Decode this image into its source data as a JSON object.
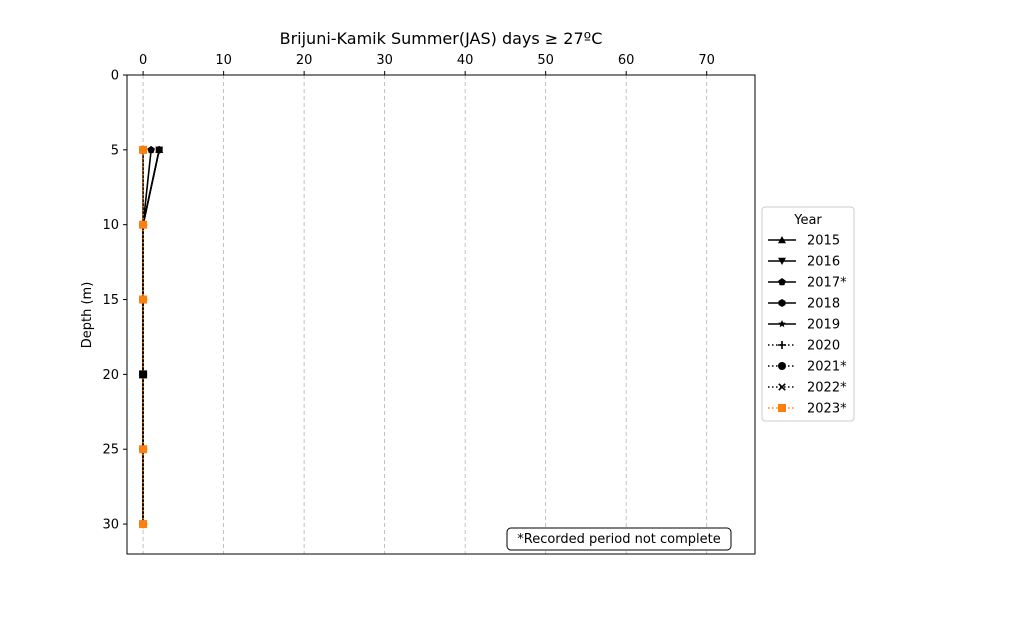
{
  "chart_data": {
    "type": "line",
    "title": "Brijuni-Kamik Summer(JAS) days ≥ 27ºC",
    "xlabel": "",
    "ylabel": "Depth (m)",
    "xlim": [
      -2,
      76
    ],
    "ylim": [
      32,
      0
    ],
    "x_ticks": [
      0,
      10,
      20,
      30,
      40,
      50,
      60,
      70
    ],
    "y_ticks": [
      0,
      5,
      10,
      15,
      20,
      25,
      30
    ],
    "x_axis_position": "top",
    "y_inverted": true,
    "grid": "vertical dashed",
    "legend": {
      "title": "Year",
      "placement": "center-right outside"
    },
    "annotation": "*Recorded period not complete",
    "series": [
      {
        "name": "2015",
        "marker": "triangle-up",
        "linestyle": "solid",
        "color": "#000000",
        "points": [
          {
            "x": 2,
            "y": 5
          },
          {
            "x": 0,
            "y": 10
          },
          {
            "x": 0,
            "y": 15
          },
          {
            "x": 0,
            "y": 20
          },
          {
            "x": 0,
            "y": 25
          },
          {
            "x": 0,
            "y": 30
          }
        ]
      },
      {
        "name": "2016",
        "marker": "triangle-down",
        "linestyle": "solid",
        "color": "#000000",
        "points": [
          {
            "x": 2,
            "y": 5
          },
          {
            "x": 0,
            "y": 10
          },
          {
            "x": 0,
            "y": 15
          },
          {
            "x": 0,
            "y": 20
          },
          {
            "x": 0,
            "y": 25
          },
          {
            "x": 0,
            "y": 30
          }
        ]
      },
      {
        "name": "2017*",
        "marker": "pentagon",
        "linestyle": "solid",
        "color": "#000000",
        "points": [
          {
            "x": 1,
            "y": 5
          },
          {
            "x": 0,
            "y": 10
          },
          {
            "x": 0,
            "y": 15
          },
          {
            "x": 0,
            "y": 20
          },
          {
            "x": 0,
            "y": 25
          },
          {
            "x": 0,
            "y": 30
          }
        ]
      },
      {
        "name": "2018",
        "marker": "hexagon",
        "linestyle": "solid",
        "color": "#000000",
        "points": [
          {
            "x": 2,
            "y": 5
          },
          {
            "x": 0,
            "y": 10
          },
          {
            "x": 0,
            "y": 15
          },
          {
            "x": 0,
            "y": 20
          },
          {
            "x": 0,
            "y": 25
          },
          {
            "x": 0,
            "y": 30
          }
        ]
      },
      {
        "name": "2019",
        "marker": "star",
        "linestyle": "solid",
        "color": "#000000",
        "points": [
          {
            "x": 0,
            "y": 5
          },
          {
            "x": 0,
            "y": 10
          },
          {
            "x": 0,
            "y": 15
          },
          {
            "x": 0,
            "y": 20
          },
          {
            "x": 0,
            "y": 25
          },
          {
            "x": 0,
            "y": 30
          }
        ]
      },
      {
        "name": "2020",
        "marker": "plus",
        "linestyle": "dotted",
        "color": "#000000",
        "points": [
          {
            "x": 0,
            "y": 5
          },
          {
            "x": 0,
            "y": 10
          },
          {
            "x": 0,
            "y": 15
          },
          {
            "x": 0,
            "y": 20
          },
          {
            "x": 0,
            "y": 25
          },
          {
            "x": 0,
            "y": 30
          }
        ]
      },
      {
        "name": "2021*",
        "marker": "circle",
        "linestyle": "dotted",
        "color": "#000000",
        "points": [
          {
            "x": 0,
            "y": 5
          },
          {
            "x": 0,
            "y": 10
          },
          {
            "x": 0,
            "y": 15
          },
          {
            "x": 0,
            "y": 20
          },
          {
            "x": 0,
            "y": 25
          },
          {
            "x": 0,
            "y": 30
          }
        ]
      },
      {
        "name": "2022*",
        "marker": "x",
        "linestyle": "dotted",
        "color": "#000000",
        "points": [
          {
            "x": 0,
            "y": 5
          },
          {
            "x": 0,
            "y": 10
          },
          {
            "x": 0,
            "y": 15
          },
          {
            "x": 0,
            "y": 20
          },
          {
            "x": 0,
            "y": 25
          },
          {
            "x": 0,
            "y": 30
          }
        ]
      },
      {
        "name": "2023*",
        "marker": "square",
        "linestyle": "dotted",
        "color": "#ff7f0e",
        "points": [
          {
            "x": 0,
            "y": 5
          },
          {
            "x": 0,
            "y": 10
          },
          {
            "x": 0,
            "y": 15
          },
          {
            "x": 0,
            "y": 25
          },
          {
            "x": 0,
            "y": 30
          }
        ]
      }
    ],
    "extra_markers": [
      {
        "marker": "square",
        "color": "#000000",
        "x": 0,
        "y": 20
      }
    ]
  }
}
